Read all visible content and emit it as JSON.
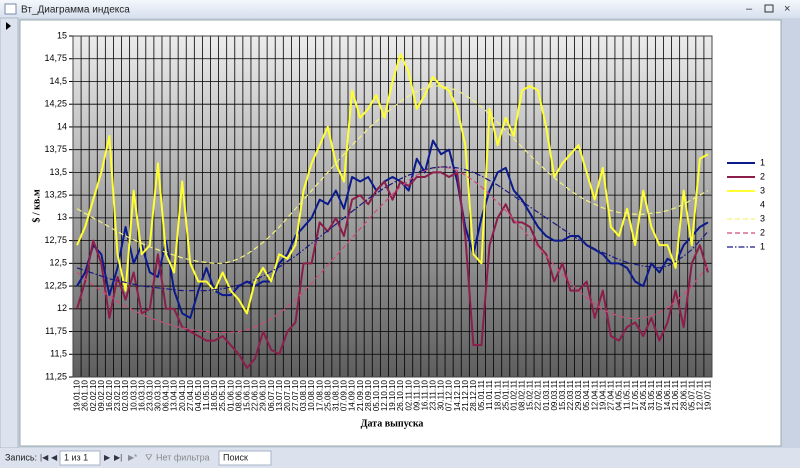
{
  "ui": {
    "window_title": "Вт_Диаграмма индекса",
    "record_label": "Запись:",
    "record_position": "1 из 1",
    "filter": "Нет фильтра",
    "search": "Поиск"
  },
  "chart_data": {
    "type": "line",
    "xlabel": "Дата выпуска",
    "ylabel": "$ / кв.м",
    "categories": [
      "19.01.10",
      "26.01.10",
      "02.02.10",
      "09.02.10",
      "16.02.10",
      "23.02.10",
      "02.03.10",
      "10.03.10",
      "16.03.10",
      "23.03.10",
      "30.03.10",
      "06.04.10",
      "13.04.10",
      "20.04.10",
      "27.04.10",
      "04.05.10",
      "11.05.10",
      "18.05.10",
      "25.05.10",
      "01.06.10",
      "08.06.10",
      "15.06.10",
      "22.06.10",
      "29.06.10",
      "06.07.10",
      "13.07.10",
      "20.07.10",
      "27.07.10",
      "03.08.10",
      "10.08.10",
      "17.08.10",
      "25.08.10",
      "31.08.10",
      "07.09.10",
      "14.09.10",
      "21.09.10",
      "28.09.10",
      "05.10.10",
      "12.10.10",
      "19.10.10",
      "26.10.10",
      "02.11.10",
      "09.11.10",
      "16.11.10",
      "23.11.10",
      "30.11.10",
      "07.12.10",
      "14.12.10",
      "21.12.10",
      "28.12.10",
      "05.01.11",
      "11.01.11",
      "18.01.11",
      "25.01.11",
      "01.02.11",
      "08.02.11",
      "15.02.11",
      "22.02.11",
      "01.03.11",
      "09.03.11",
      "15.03.11",
      "22.03.11",
      "29.03.11",
      "05.04.11",
      "12.04.11",
      "19.04.11",
      "27.04.11",
      "04.05.11",
      "11.05.11",
      "17.05.11",
      "24.05.11",
      "31.05.11",
      "07.06.11",
      "14.06.11",
      "21.06.11",
      "28.06.11",
      "05.07.11",
      "12.07.11",
      "19.07.11"
    ],
    "ylim": [
      11.25,
      15
    ],
    "yticks": [
      {
        "value": 11.25,
        "label": "11,25"
      },
      {
        "value": 11.5,
        "label": "11,5"
      },
      {
        "value": 11.75,
        "label": "11,75"
      },
      {
        "value": 12,
        "label": "12"
      },
      {
        "value": 12.25,
        "label": "12,25"
      },
      {
        "value": 12.5,
        "label": "12,5"
      },
      {
        "value": 12.75,
        "label": "12,75"
      },
      {
        "value": 13,
        "label": "13"
      },
      {
        "value": 13.25,
        "label": "13,25"
      },
      {
        "value": 13.5,
        "label": "13,5"
      },
      {
        "value": 13.75,
        "label": "13,75"
      },
      {
        "value": 14,
        "label": "14"
      },
      {
        "value": 14.25,
        "label": "14,25"
      },
      {
        "value": 14.5,
        "label": "14,5"
      },
      {
        "value": 14.75,
        "label": "14,75"
      },
      {
        "value": 15,
        "label": "15"
      }
    ],
    "grid": true,
    "legend": "right",
    "series": [
      {
        "name": "1",
        "color": "#0b1a8c",
        "dash": "solid",
        "values": [
          12.25,
          12.4,
          12.7,
          12.6,
          12.15,
          12.45,
          12.9,
          12.5,
          12.7,
          12.4,
          12.35,
          12.75,
          12.2,
          11.95,
          11.9,
          12.2,
          12.45,
          12.2,
          12.15,
          12.15,
          12.25,
          12.3,
          12.25,
          12.3,
          12.3,
          12.5,
          12.6,
          12.8,
          12.9,
          13.0,
          13.2,
          13.15,
          13.3,
          13.1,
          13.45,
          13.4,
          13.45,
          13.3,
          13.4,
          13.45,
          13.4,
          13.3,
          13.65,
          13.5,
          13.85,
          13.7,
          13.75,
          13.4,
          12.9,
          12.6,
          13.0,
          13.3,
          13.5,
          13.55,
          13.3,
          13.2,
          13.05,
          12.9,
          12.8,
          12.75,
          12.75,
          12.8,
          12.8,
          12.7,
          12.65,
          12.6,
          12.5,
          12.5,
          12.45,
          12.3,
          12.25,
          12.5,
          12.4,
          12.55,
          12.5,
          12.7,
          12.8,
          12.9,
          12.95
        ]
      },
      {
        "name": "2",
        "color": "#8b1e4a",
        "dash": "solid",
        "values": [
          12.0,
          12.3,
          12.75,
          12.5,
          11.9,
          12.35,
          12.1,
          12.4,
          11.95,
          12.0,
          12.6,
          12.0,
          12.0,
          11.8,
          11.75,
          11.7,
          11.65,
          11.65,
          11.7,
          11.6,
          11.5,
          11.35,
          11.45,
          11.75,
          11.55,
          11.5,
          11.75,
          11.85,
          12.5,
          12.5,
          12.95,
          12.85,
          13.0,
          12.8,
          13.2,
          13.25,
          13.15,
          13.3,
          13.4,
          13.2,
          13.4,
          13.35,
          13.45,
          13.45,
          13.5,
          13.5,
          13.45,
          13.5,
          12.8,
          11.6,
          11.6,
          12.7,
          13.0,
          13.15,
          12.95,
          12.95,
          12.9,
          12.7,
          12.6,
          12.3,
          12.5,
          12.2,
          12.2,
          12.3,
          11.9,
          12.2,
          11.7,
          11.65,
          11.8,
          11.85,
          11.7,
          11.9,
          11.65,
          11.85,
          12.2,
          11.8,
          12.5,
          12.7,
          12.4
        ]
      },
      {
        "name": "3",
        "color": "#ffff33",
        "dash": "solid",
        "values": [
          12.7,
          12.9,
          13.2,
          13.5,
          13.9,
          12.6,
          12.2,
          13.3,
          12.6,
          12.7,
          13.6,
          12.6,
          12.4,
          13.4,
          12.5,
          12.3,
          12.3,
          12.2,
          12.4,
          12.2,
          12.1,
          11.95,
          12.3,
          12.45,
          12.3,
          12.6,
          12.55,
          12.7,
          13.3,
          13.6,
          13.8,
          14.0,
          13.6,
          13.4,
          14.4,
          14.1,
          14.2,
          14.35,
          14.1,
          14.5,
          14.8,
          14.6,
          14.2,
          14.35,
          14.55,
          14.45,
          14.4,
          14.2,
          13.8,
          12.6,
          12.5,
          14.2,
          13.8,
          14.1,
          13.9,
          14.4,
          14.45,
          14.4,
          14.0,
          13.45,
          13.6,
          13.7,
          13.8,
          13.5,
          13.2,
          13.55,
          12.9,
          12.8,
          13.1,
          12.7,
          13.3,
          12.9,
          12.7,
          12.7,
          12.45,
          13.3,
          12.7,
          13.65,
          13.7
        ]
      },
      {
        "name": "4",
        "values": [
          null,
          null,
          null,
          null,
          null,
          null,
          null,
          null,
          null,
          null,
          null,
          null,
          null,
          null,
          null,
          null,
          null,
          null,
          null,
          null,
          null,
          null,
          null,
          null,
          null,
          null,
          null,
          null,
          null,
          null,
          null,
          null,
          null,
          null,
          null,
          null,
          null,
          null,
          null,
          null,
          null,
          null,
          null,
          null,
          null,
          null,
          null,
          null,
          null,
          null,
          null,
          null,
          null,
          null,
          null,
          null,
          null,
          null,
          null,
          null,
          null,
          null,
          null,
          null,
          null,
          null,
          null,
          null,
          null,
          null,
          null,
          null,
          null,
          null,
          null,
          null,
          null,
          null,
          null
        ]
      },
      {
        "name": "3",
        "color": "#f4f27a",
        "dash": "dash",
        "values": [
          13.1,
          13.05,
          13.0,
          12.95,
          12.9,
          12.85,
          12.8,
          12.76,
          12.72,
          12.68,
          12.65,
          12.62,
          12.59,
          12.56,
          12.54,
          12.52,
          12.51,
          12.5,
          12.5,
          12.52,
          12.55,
          12.6,
          12.66,
          12.73,
          12.81,
          12.9,
          13.0,
          13.1,
          13.2,
          13.3,
          13.4,
          13.5,
          13.6,
          13.7,
          13.8,
          13.89,
          13.98,
          14.06,
          14.14,
          14.21,
          14.28,
          14.34,
          14.39,
          14.43,
          14.45,
          14.45,
          14.43,
          14.4,
          14.35,
          14.29,
          14.22,
          14.14,
          14.05,
          13.96,
          13.87,
          13.78,
          13.69,
          13.6,
          13.52,
          13.44,
          13.37,
          13.3,
          13.24,
          13.19,
          13.15,
          13.11,
          13.08,
          13.06,
          13.05,
          13.04,
          13.04,
          13.05,
          13.06,
          13.08,
          13.11,
          13.15,
          13.2,
          13.25,
          13.3
        ]
      },
      {
        "name": "2",
        "color": "#d04a78",
        "dash": "dash",
        "values": [
          12.4,
          12.33,
          12.26,
          12.2,
          12.14,
          12.08,
          12.03,
          11.98,
          11.94,
          11.9,
          11.87,
          11.84,
          11.81,
          11.79,
          11.77,
          11.76,
          11.75,
          11.74,
          11.74,
          11.74,
          11.75,
          11.77,
          11.8,
          11.84,
          11.89,
          11.95,
          12.02,
          12.1,
          12.19,
          12.28,
          12.38,
          12.48,
          12.58,
          12.68,
          12.78,
          12.88,
          12.98,
          13.08,
          13.17,
          13.26,
          13.34,
          13.41,
          13.47,
          13.52,
          13.55,
          13.56,
          13.55,
          13.52,
          13.47,
          13.41,
          13.34,
          13.26,
          13.17,
          13.08,
          12.98,
          12.88,
          12.78,
          12.68,
          12.58,
          12.48,
          12.38,
          12.29,
          12.2,
          12.12,
          12.05,
          11.99,
          11.95,
          11.92,
          11.9,
          11.89,
          11.9,
          11.92,
          11.96,
          12.01,
          12.08,
          12.16,
          12.25,
          12.36,
          12.48
        ]
      },
      {
        "name": "1",
        "color": "#1a1a80",
        "dash": "dashdot",
        "values": [
          12.45,
          12.42,
          12.39,
          12.36,
          12.33,
          12.31,
          12.29,
          12.27,
          12.25,
          12.24,
          12.23,
          12.22,
          12.21,
          12.2,
          12.2,
          12.2,
          12.2,
          12.21,
          12.22,
          12.24,
          12.26,
          12.29,
          12.32,
          12.36,
          12.41,
          12.46,
          12.52,
          12.58,
          12.65,
          12.72,
          12.79,
          12.86,
          12.93,
          13.0,
          13.07,
          13.14,
          13.21,
          13.27,
          13.33,
          13.38,
          13.43,
          13.47,
          13.5,
          13.53,
          13.55,
          13.56,
          13.56,
          13.55,
          13.53,
          13.5,
          13.46,
          13.41,
          13.36,
          13.3,
          13.24,
          13.18,
          13.12,
          13.06,
          13.0,
          12.94,
          12.88,
          12.82,
          12.76,
          12.71,
          12.66,
          12.62,
          12.58,
          12.54,
          12.51,
          12.49,
          12.47,
          12.46,
          12.45,
          12.47,
          12.52,
          12.58,
          12.65,
          12.75,
          12.85
        ]
      }
    ]
  }
}
